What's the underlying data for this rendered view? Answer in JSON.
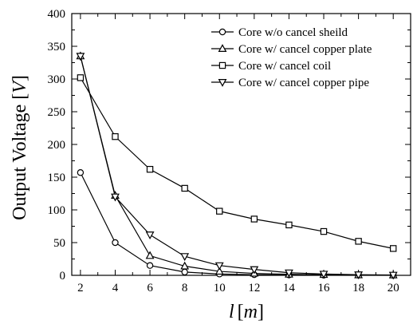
{
  "chart_data": {
    "type": "line",
    "title": "",
    "xlabel": "l [m]",
    "xlabel_parts": {
      "var": "l",
      "unit_open": "[",
      "unit": "m",
      "unit_close": "]"
    },
    "ylabel": "Output Voltage [V]",
    "ylabel_parts": {
      "text": "Output Voltage ",
      "unit_open": "[",
      "unit": "V",
      "unit_close": "]"
    },
    "xlim": [
      1.5,
      21
    ],
    "ylim": [
      0,
      400
    ],
    "xticks": [
      2,
      4,
      6,
      8,
      10,
      12,
      14,
      16,
      18,
      20
    ],
    "yticks": [
      0,
      50,
      100,
      150,
      200,
      250,
      300,
      350,
      400
    ],
    "grid": false,
    "legend_position": "top-right",
    "series": [
      {
        "name": "Core w/o cancel sheild",
        "marker": "circle",
        "x": [
          2,
          4,
          6,
          8,
          10,
          12,
          14,
          16,
          18,
          20
        ],
        "values": [
          157,
          50,
          15,
          5,
          2,
          1,
          0.5,
          0.3,
          0.2,
          0.1
        ]
      },
      {
        "name": "Core w/ cancel copper plate",
        "marker": "triangle-up",
        "x": [
          2,
          4,
          6,
          8,
          10,
          12,
          14,
          16,
          18,
          20
        ],
        "values": [
          335,
          122,
          30,
          14,
          6,
          3,
          1.5,
          1,
          0.5,
          0.3
        ]
      },
      {
        "name": "Core w/ cancel coil",
        "marker": "square",
        "x": [
          2,
          4,
          6,
          8,
          10,
          12,
          14,
          16,
          18,
          20
        ],
        "values": [
          302,
          212,
          162,
          133,
          98,
          86,
          77,
          67,
          52,
          41
        ]
      },
      {
        "name": "Core w/ cancel copper pipe",
        "marker": "triangle-down",
        "x": [
          2,
          4,
          6,
          8,
          10,
          12,
          14,
          16,
          18,
          20
        ],
        "values": [
          335,
          120,
          62,
          29,
          15,
          9,
          4,
          2,
          1,
          0.5
        ]
      }
    ]
  }
}
